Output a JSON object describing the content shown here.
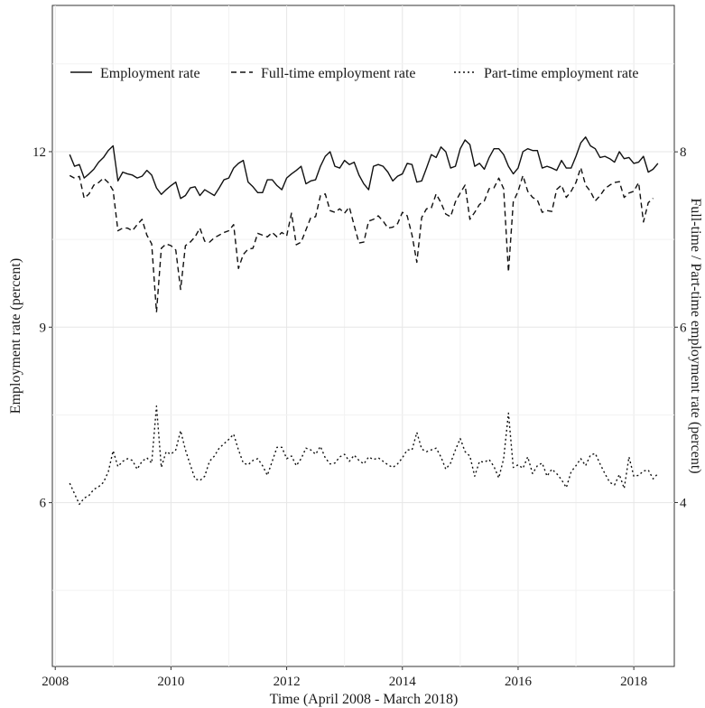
{
  "chart_data": {
    "type": "line",
    "xlabel": "Time (April 2008 - March 2018)",
    "ylabel_left": "Employment rate (percent)",
    "ylabel_right": "Full-time / Part-time employment rate (percent)",
    "xlim": [
      2007.95,
      2018.7
    ],
    "ylim_left": [
      3.2,
      14.5
    ],
    "ylim_right": [
      2.13,
      9.67
    ],
    "x_ticks": [
      2008,
      2010,
      2012,
      2014,
      2016,
      2018
    ],
    "y_ticks_left": [
      6,
      9,
      12
    ],
    "y_ticks_right": [
      4,
      6,
      8
    ],
    "grid": true,
    "legend_position": "top",
    "start": {
      "year": 2008,
      "month": 4
    },
    "series": [
      {
        "name": "Employment rate",
        "axis": "left",
        "dash": "solid",
        "values": [
          11.95,
          11.75,
          11.78,
          11.55,
          11.62,
          11.7,
          11.82,
          11.9,
          12.02,
          12.1,
          11.5,
          11.65,
          11.62,
          11.6,
          11.55,
          11.58,
          11.68,
          11.6,
          11.38,
          11.27,
          11.35,
          11.42,
          11.48,
          11.2,
          11.25,
          11.38,
          11.4,
          11.25,
          11.35,
          11.3,
          11.25,
          11.38,
          11.52,
          11.55,
          11.72,
          11.8,
          11.85,
          11.48,
          11.4,
          11.3,
          11.3,
          11.52,
          11.52,
          11.42,
          11.35,
          11.55,
          11.62,
          11.68,
          11.75,
          11.45,
          11.5,
          11.52,
          11.75,
          11.92,
          12.0,
          11.75,
          11.72,
          11.85,
          11.78,
          11.82,
          11.6,
          11.45,
          11.35,
          11.75,
          11.78,
          11.75,
          11.65,
          11.5,
          11.58,
          11.62,
          11.8,
          11.78,
          11.48,
          11.5,
          11.72,
          11.95,
          11.9,
          12.08,
          12.0,
          11.72,
          11.75,
          12.05,
          12.2,
          12.12,
          11.75,
          11.8,
          11.7,
          11.9,
          12.05,
          12.05,
          11.95,
          11.75,
          11.62,
          11.72,
          12.0,
          12.05,
          12.02,
          12.02,
          11.72,
          11.75,
          11.72,
          11.68,
          11.85,
          11.72,
          11.72,
          11.92,
          12.15,
          12.25,
          12.1,
          12.05,
          11.9,
          11.92,
          11.88,
          11.82,
          12.0,
          11.88,
          11.9,
          11.8,
          11.82,
          11.92,
          11.65,
          11.7,
          11.8
        ]
      },
      {
        "name": "Full-time employment rate",
        "axis": "right",
        "dash": "dashed",
        "values": [
          7.73,
          7.7,
          7.72,
          7.47,
          7.52,
          7.62,
          7.65,
          7.7,
          7.65,
          7.56,
          7.1,
          7.13,
          7.13,
          7.1,
          7.17,
          7.23,
          7.05,
          6.95,
          6.17,
          6.9,
          6.95,
          6.93,
          6.88,
          6.43,
          6.93,
          6.97,
          7.03,
          7.13,
          6.98,
          6.97,
          7.02,
          7.05,
          7.08,
          7.1,
          7.17,
          6.67,
          6.83,
          6.89,
          6.9,
          7.07,
          7.05,
          7.03,
          7.08,
          7.03,
          7.08,
          7.04,
          7.3,
          6.94,
          6.97,
          7.11,
          7.25,
          7.26,
          7.5,
          7.52,
          7.33,
          7.31,
          7.35,
          7.3,
          7.37,
          7.16,
          6.96,
          6.97,
          7.21,
          7.23,
          7.27,
          7.21,
          7.13,
          7.14,
          7.18,
          7.31,
          7.27,
          7.05,
          6.74,
          7.25,
          7.35,
          7.36,
          7.52,
          7.42,
          7.29,
          7.26,
          7.43,
          7.53,
          7.62,
          7.23,
          7.31,
          7.4,
          7.44,
          7.58,
          7.59,
          7.7,
          7.58,
          6.63,
          7.43,
          7.55,
          7.73,
          7.55,
          7.48,
          7.45,
          7.31,
          7.33,
          7.32,
          7.57,
          7.62,
          7.48,
          7.55,
          7.65,
          7.82,
          7.62,
          7.55,
          7.44,
          7.5,
          7.58,
          7.62,
          7.65,
          7.66,
          7.48,
          7.53,
          7.55,
          7.65,
          7.2,
          7.42,
          7.47
        ]
      },
      {
        "name": "Part-time employment rate",
        "axis": "right",
        "dash": "dotted",
        "values": [
          4.22,
          4.1,
          3.98,
          4.05,
          4.08,
          4.15,
          4.18,
          4.23,
          4.35,
          4.59,
          4.41,
          4.47,
          4.5,
          4.48,
          4.38,
          4.47,
          4.51,
          4.45,
          5.1,
          4.4,
          4.58,
          4.55,
          4.6,
          4.82,
          4.6,
          4.43,
          4.27,
          4.25,
          4.3,
          4.47,
          4.53,
          4.62,
          4.67,
          4.72,
          4.78,
          4.6,
          4.45,
          4.43,
          4.48,
          4.5,
          4.42,
          4.31,
          4.47,
          4.63,
          4.63,
          4.5,
          4.53,
          4.42,
          4.5,
          4.62,
          4.6,
          4.55,
          4.64,
          4.51,
          4.44,
          4.45,
          4.52,
          4.55,
          4.47,
          4.54,
          4.48,
          4.44,
          4.52,
          4.49,
          4.51,
          4.47,
          4.43,
          4.4,
          4.44,
          4.51,
          4.6,
          4.6,
          4.8,
          4.61,
          4.58,
          4.6,
          4.62,
          4.52,
          4.38,
          4.45,
          4.6,
          4.73,
          4.58,
          4.53,
          4.3,
          4.47,
          4.46,
          4.49,
          4.41,
          4.28,
          4.5,
          5.02,
          4.4,
          4.43,
          4.39,
          4.52,
          4.33,
          4.42,
          4.45,
          4.3,
          4.38,
          4.33,
          4.26,
          4.17,
          4.35,
          4.42,
          4.5,
          4.42,
          4.54,
          4.56,
          4.44,
          4.33,
          4.23,
          4.2,
          4.32,
          4.16,
          4.52,
          4.3,
          4.31,
          4.36,
          4.37,
          4.27,
          4.33
        ]
      }
    ]
  }
}
